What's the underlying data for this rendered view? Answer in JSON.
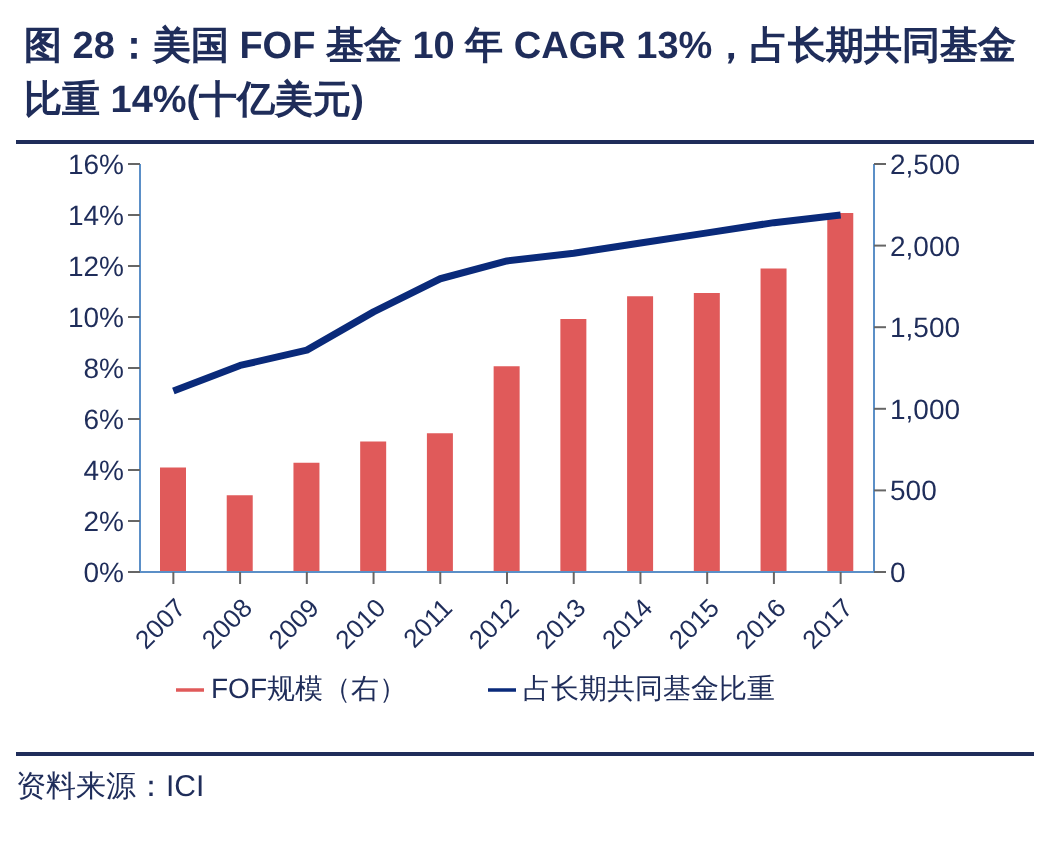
{
  "chart_data": {
    "type": "bar",
    "title": "图 28：美国 FOF 基金 10 年 CAGR 13%，占长期共同基金比重 14%(十亿美元)",
    "categories": [
      "2007",
      "2008",
      "2009",
      "2010",
      "2011",
      "2012",
      "2013",
      "2014",
      "2015",
      "2016",
      "2017"
    ],
    "series": [
      {
        "name": "FOF规模（右）",
        "axis": "y2",
        "color": "#e05a5a",
        "values": [
          640,
          470,
          670,
          800,
          850,
          1260,
          1550,
          1690,
          1710,
          1860,
          2200
        ]
      },
      {
        "name": "占长期共同基金比重",
        "type": "line",
        "color": "#0a2a7a",
        "values": [
          7.1,
          8.1,
          8.7,
          10.2,
          11.5,
          12.2,
          12.5,
          12.9,
          13.3,
          13.7,
          14.0
        ]
      }
    ],
    "ylim": [
      0,
      16
    ],
    "yticks": [
      {
        "value": 0,
        "label": "0%"
      },
      {
        "value": 2,
        "label": "2%"
      },
      {
        "value": 4,
        "label": "4%"
      },
      {
        "value": 6,
        "label": "6%"
      },
      {
        "value": 8,
        "label": "8%"
      },
      {
        "value": 10,
        "label": "10%"
      },
      {
        "value": 12,
        "label": "12%"
      },
      {
        "value": 14,
        "label": "14%"
      },
      {
        "value": 16,
        "label": "16%"
      }
    ],
    "y2lim": [
      0,
      2500
    ],
    "y2ticks": [
      {
        "value": 0,
        "label": "0"
      },
      {
        "value": 500,
        "label": "500"
      },
      {
        "value": 1000,
        "label": "1,000"
      },
      {
        "value": 1500,
        "label": "1,500"
      },
      {
        "value": 2000,
        "label": "2,000"
      },
      {
        "value": 2500,
        "label": "2,500"
      }
    ],
    "legend": "bottom",
    "marker": "none",
    "annotations": [
      "资料来源：ICI"
    ]
  }
}
